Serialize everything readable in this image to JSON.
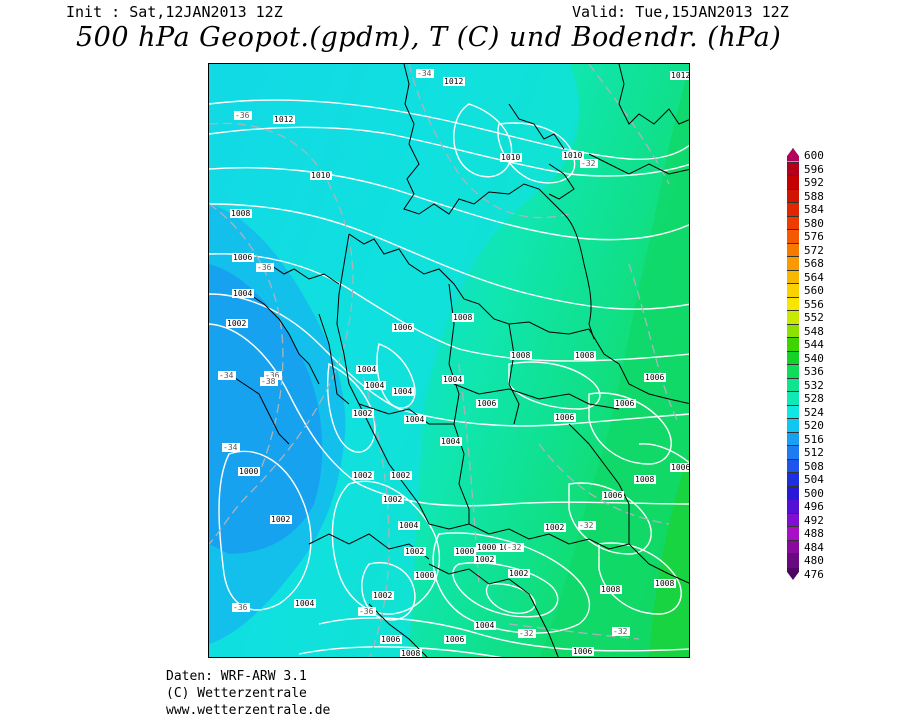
{
  "header": {
    "init": "Init : Sat,12JAN2013 12Z",
    "valid": "Valid: Tue,15JAN2013 12Z",
    "title": "500 hPa Geopot.(gpdm), T (C) und Bodendr. (hPa)"
  },
  "legend": {
    "levels": [
      {
        "label": "600",
        "color": "#b3005c"
      },
      {
        "label": "596",
        "color": "#b3001a"
      },
      {
        "label": "592",
        "color": "#c40000"
      },
      {
        "label": "588",
        "color": "#d11400"
      },
      {
        "label": "584",
        "color": "#e02800"
      },
      {
        "label": "580",
        "color": "#ee3c00"
      },
      {
        "label": "576",
        "color": "#f55a00"
      },
      {
        "label": "572",
        "color": "#f77a00"
      },
      {
        "label": "568",
        "color": "#f89a00"
      },
      {
        "label": "564",
        "color": "#f9b800"
      },
      {
        "label": "560",
        "color": "#fad200"
      },
      {
        "label": "556",
        "color": "#f6e600"
      },
      {
        "label": "552",
        "color": "#c8ea00"
      },
      {
        "label": "548",
        "color": "#8ee000"
      },
      {
        "label": "544",
        "color": "#3ed400"
      },
      {
        "label": "540",
        "color": "#14d22a"
      },
      {
        "label": "536",
        "color": "#10dc5c"
      },
      {
        "label": "532",
        "color": "#10e48e"
      },
      {
        "label": "528",
        "color": "#10e8b8"
      },
      {
        "label": "524",
        "color": "#10e6e2"
      },
      {
        "label": "520",
        "color": "#12c6f2"
      },
      {
        "label": "516",
        "color": "#1aa0f2"
      },
      {
        "label": "512",
        "color": "#1c7cf0"
      },
      {
        "label": "508",
        "color": "#1c56ea"
      },
      {
        "label": "504",
        "color": "#1c30e2"
      },
      {
        "label": "500",
        "color": "#2818d8"
      },
      {
        "label": "496",
        "color": "#5410d4"
      },
      {
        "label": "492",
        "color": "#8010d0"
      },
      {
        "label": "488",
        "color": "#a810c8"
      },
      {
        "label": "484",
        "color": "#8a0aa0"
      },
      {
        "label": "480",
        "color": "#6a0880"
      },
      {
        "label": "476",
        "color": "#4a0660"
      }
    ]
  },
  "pressure_labels": [
    "1012",
    "1012",
    "1012",
    "1010",
    "1010",
    "1010",
    "1008",
    "1008",
    "1008",
    "1008",
    "1006",
    "1006",
    "1006",
    "1006",
    "1006",
    "1006",
    "1004",
    "1004",
    "1004",
    "1004",
    "1004",
    "1004",
    "1004",
    "1004",
    "1004",
    "1002",
    "1002",
    "1002",
    "1002",
    "1002",
    "1002",
    "1002",
    "1002",
    "1002",
    "1002",
    "1002",
    "1000",
    "1000",
    "1000",
    "1000",
    "1000",
    "1006",
    "1008",
    "1008",
    "1006",
    "1006",
    "1006",
    "1006",
    "1004",
    "1008",
    "1008"
  ],
  "temp_labels": [
    "-34",
    "-36",
    "-36",
    "-36",
    "-34",
    "-38",
    "-34",
    "-32",
    "-32",
    "-32",
    "-32",
    "-32",
    "-36",
    "-36"
  ],
  "footer": {
    "line1": "Daten: WRF-ARW 3.1",
    "line2": "(C) Wetterzentrale",
    "line3": "www.wetterzentrale.de"
  }
}
